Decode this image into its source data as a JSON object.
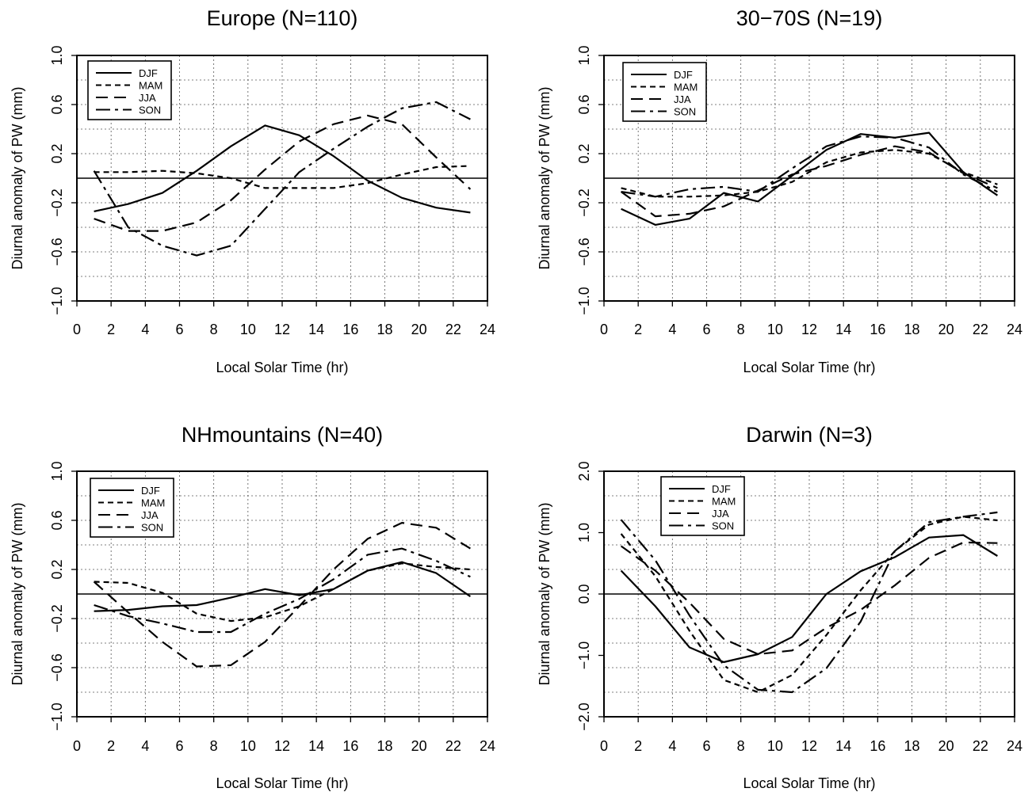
{
  "chart_data": [
    {
      "type": "line",
      "title": "Europe (N=110)",
      "xlabel": "Local Solar Time (hr)",
      "ylabel": "Diurnal anomaly of PW (mm)",
      "xlim": [
        0,
        24
      ],
      "ylim": [
        -1.0,
        1.0
      ],
      "xticks": [
        "0",
        "2",
        "4",
        "6",
        "8",
        "10",
        "12",
        "14",
        "16",
        "18",
        "20",
        "22",
        "24"
      ],
      "yticks": [
        "-1.0",
        "-0.6",
        "-0.2",
        "0.2",
        "0.6",
        "1.0"
      ],
      "grid": true,
      "legend_position": "top-left",
      "x": [
        1,
        3,
        5,
        7,
        9,
        11,
        13,
        15,
        17,
        19,
        21,
        23
      ],
      "series": [
        {
          "name": "DJF",
          "dash": "solid",
          "values": [
            -0.27,
            -0.21,
            -0.12,
            0.06,
            0.26,
            0.43,
            0.35,
            0.18,
            -0.02,
            -0.16,
            -0.24,
            -0.28
          ]
        },
        {
          "name": "MAM",
          "dash": "short",
          "values": [
            0.05,
            0.05,
            0.06,
            0.04,
            0.0,
            -0.08,
            -0.08,
            -0.08,
            -0.04,
            0.03,
            0.09,
            0.1
          ]
        },
        {
          "name": "JJA",
          "dash": "long",
          "values": [
            -0.33,
            -0.43,
            -0.43,
            -0.36,
            -0.18,
            0.07,
            0.3,
            0.44,
            0.51,
            0.44,
            0.17,
            -0.09
          ]
        },
        {
          "name": "SON",
          "dash": "dashdot",
          "values": [
            0.06,
            -0.4,
            -0.55,
            -0.63,
            -0.55,
            -0.25,
            0.05,
            0.24,
            0.42,
            0.57,
            0.62,
            0.48
          ]
        }
      ]
    },
    {
      "type": "line",
      "title": "30−70S (N=19)",
      "xlabel": "Local Solar Time (hr)",
      "ylabel": "Diurnal anomaly of PW (mm)",
      "xlim": [
        0,
        24
      ],
      "ylim": [
        -1.0,
        1.0
      ],
      "xticks": [
        "0",
        "2",
        "4",
        "6",
        "8",
        "10",
        "12",
        "14",
        "16",
        "18",
        "20",
        "22",
        "24"
      ],
      "yticks": [
        "-1.0",
        "-0.6",
        "-0.2",
        "0.2",
        "0.6",
        "1.0"
      ],
      "grid": true,
      "legend_position": "top-left",
      "x": [
        1,
        3,
        5,
        7,
        9,
        11,
        13,
        15,
        17,
        19,
        21,
        23
      ],
      "series": [
        {
          "name": "DJF",
          "dash": "solid",
          "values": [
            -0.25,
            -0.38,
            -0.33,
            -0.12,
            -0.19,
            0.02,
            0.23,
            0.36,
            0.33,
            0.37,
            0.05,
            -0.14
          ]
        },
        {
          "name": "MAM",
          "dash": "short",
          "values": [
            -0.08,
            -0.15,
            -0.15,
            -0.14,
            -0.11,
            -0.03,
            0.13,
            0.21,
            0.23,
            0.2,
            0.05,
            -0.05
          ]
        },
        {
          "name": "JJA",
          "dash": "long",
          "values": [
            -0.11,
            -0.31,
            -0.29,
            -0.23,
            -0.1,
            0.03,
            0.1,
            0.19,
            0.26,
            0.21,
            0.04,
            -0.08
          ]
        },
        {
          "name": "SON",
          "dash": "dashdot",
          "values": [
            -0.11,
            -0.15,
            -0.09,
            -0.07,
            -0.11,
            0.08,
            0.26,
            0.34,
            0.33,
            0.25,
            0.03,
            -0.11
          ]
        }
      ]
    },
    {
      "type": "line",
      "title": "NHmountains (N=40)",
      "xlabel": "Local Solar Time (hr)",
      "ylabel": "Diurnal anomaly of PW (mm)",
      "xlim": [
        0,
        24
      ],
      "ylim": [
        -1.0,
        1.0
      ],
      "xticks": [
        "0",
        "2",
        "4",
        "6",
        "8",
        "10",
        "12",
        "14",
        "16",
        "18",
        "20",
        "22",
        "24"
      ],
      "yticks": [
        "-1.0",
        "-0.6",
        "-0.2",
        "0.2",
        "0.6",
        "1.0"
      ],
      "grid": true,
      "legend_position": "top-left",
      "x": [
        1,
        3,
        5,
        7,
        9,
        11,
        13,
        15,
        17,
        19,
        21,
        23
      ],
      "series": [
        {
          "name": "DJF",
          "dash": "solid",
          "values": [
            -0.14,
            -0.13,
            -0.1,
            -0.09,
            -0.03,
            0.04,
            -0.01,
            0.04,
            0.19,
            0.26,
            0.17,
            -0.02
          ]
        },
        {
          "name": "MAM",
          "dash": "short",
          "values": [
            0.1,
            0.09,
            0.01,
            -0.16,
            -0.22,
            -0.19,
            -0.1,
            0.04,
            0.19,
            0.25,
            0.22,
            0.2
          ]
        },
        {
          "name": "JJA",
          "dash": "long",
          "values": [
            0.1,
            -0.15,
            -0.39,
            -0.59,
            -0.58,
            -0.39,
            -0.1,
            0.2,
            0.45,
            0.58,
            0.54,
            0.37
          ]
        },
        {
          "name": "SON",
          "dash": "dashdot",
          "values": [
            -0.09,
            -0.18,
            -0.24,
            -0.31,
            -0.31,
            -0.16,
            -0.04,
            0.12,
            0.32,
            0.37,
            0.27,
            0.14
          ]
        }
      ]
    },
    {
      "type": "line",
      "title": "Darwin (N=3)",
      "xlabel": "Local Solar Time (hr)",
      "ylabel": "Diurnal anomaly of PW (mm)",
      "xlim": [
        0,
        24
      ],
      "ylim": [
        -2.0,
        2.0
      ],
      "xticks": [
        "0",
        "2",
        "4",
        "6",
        "8",
        "10",
        "12",
        "14",
        "16",
        "18",
        "20",
        "22",
        "24"
      ],
      "yticks": [
        "-2.0",
        "-1.0",
        "0.0",
        "1.0",
        "2.0"
      ],
      "grid": true,
      "legend_position": "top-left",
      "x": [
        1,
        3,
        5,
        7,
        9,
        11,
        13,
        15,
        17,
        19,
        21,
        23
      ],
      "series": [
        {
          "name": "DJF",
          "dash": "solid",
          "values": [
            0.38,
            -0.2,
            -0.87,
            -1.11,
            -0.98,
            -0.7,
            0.0,
            0.37,
            0.6,
            0.92,
            0.96,
            0.62
          ]
        },
        {
          "name": "MAM",
          "dash": "short",
          "values": [
            0.98,
            0.29,
            -0.6,
            -1.4,
            -1.6,
            -1.32,
            -0.67,
            0.06,
            0.7,
            1.13,
            1.26,
            1.2
          ]
        },
        {
          "name": "JJA",
          "dash": "long",
          "values": [
            0.78,
            0.38,
            -0.14,
            -0.73,
            -0.98,
            -0.92,
            -0.55,
            -0.26,
            0.14,
            0.59,
            0.84,
            0.83
          ]
        },
        {
          "name": "SON",
          "dash": "dashdot",
          "values": [
            1.21,
            0.55,
            -0.35,
            -1.16,
            -1.56,
            -1.6,
            -1.21,
            -0.45,
            0.7,
            1.17,
            1.26,
            1.33
          ]
        }
      ]
    }
  ]
}
